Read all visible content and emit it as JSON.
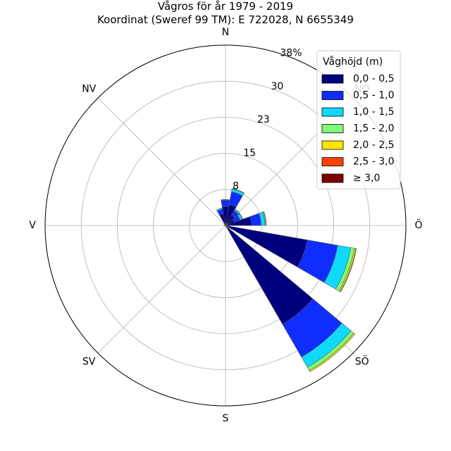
{
  "chart_data": {
    "type": "wind-rose",
    "title_line1": "Vågros för år 1979 - 2019",
    "title_line2": "Koordinat (Sweref 99 TM): E 722028, N 6655349",
    "direction_labels": [
      "N",
      "NV",
      "V",
      "SV",
      "S",
      "SÖ",
      "Ö",
      "NO"
    ],
    "direction_angles_deg": [
      0,
      315,
      270,
      225,
      180,
      135,
      90,
      45
    ],
    "radial_ticks": [
      "8",
      "15",
      "23",
      "30",
      "38%"
    ],
    "radial_tick_values": [
      7.6,
      15.2,
      22.8,
      30.4,
      38
    ],
    "rmax": 38,
    "legend": {
      "title": "Våghöjd (m)",
      "position": "top-right",
      "entries": [
        "0,0 - 0,5",
        "0,5 - 1,0",
        "1,0 - 1,5",
        "1,5 - 2,0",
        "2,0 - 2,5",
        "2,5 - 3,0",
        "≥ 3,0"
      ],
      "colors": [
        "#00007f",
        "#0f2dff",
        "#10d9ff",
        "#7dff7a",
        "#ffe500",
        "#ff4100",
        "#7f0000"
      ]
    },
    "sectors": [
      {
        "direction_deg": 0,
        "cumulative_percent": [
          4.0,
          5.3,
          5.4,
          5.45,
          5.5,
          5.5,
          5.5
        ]
      },
      {
        "direction_deg": 20,
        "cumulative_percent": [
          4.5,
          7.2,
          7.8,
          7.9,
          7.9,
          7.9,
          7.9
        ]
      },
      {
        "direction_deg": 40,
        "cumulative_percent": [
          2.5,
          3.6,
          3.9,
          4.0,
          4.0,
          4.0,
          4.0
        ]
      },
      {
        "direction_deg": 60,
        "cumulative_percent": [
          2.0,
          3.3,
          3.8,
          3.9,
          3.9,
          3.9,
          3.9
        ]
      },
      {
        "direction_deg": 80,
        "cumulative_percent": [
          5.5,
          7.5,
          8.3,
          8.5,
          8.6,
          8.6,
          8.6
        ]
      },
      {
        "direction_deg": 110,
        "cumulative_percent": [
          17.5,
          24.0,
          26.8,
          27.6,
          27.9,
          28.0,
          28.0
        ]
      },
      {
        "direction_deg": 140,
        "cumulative_percent": [
          24.0,
          32.0,
          34.5,
          35.3,
          35.6,
          35.6,
          35.6
        ]
      },
      {
        "direction_deg": 160,
        "cumulative_percent": [
          0.1,
          0.1,
          0.1,
          0.1,
          0.1,
          0.1,
          0.1
        ]
      },
      {
        "direction_deg": 180,
        "cumulative_percent": [
          0.1,
          0.1,
          0.1,
          0.1,
          0.1,
          0.1,
          0.1
        ]
      },
      {
        "direction_deg": 200,
        "cumulative_percent": [
          0.1,
          0.1,
          0.1,
          0.1,
          0.1,
          0.1,
          0.1
        ]
      },
      {
        "direction_deg": 220,
        "cumulative_percent": [
          0.1,
          0.1,
          0.1,
          0.1,
          0.1,
          0.1,
          0.1
        ]
      },
      {
        "direction_deg": 240,
        "cumulative_percent": [
          0.1,
          0.1,
          0.1,
          0.1,
          0.1,
          0.1,
          0.1
        ]
      },
      {
        "direction_deg": 260,
        "cumulative_percent": [
          0.1,
          0.1,
          0.1,
          0.1,
          0.1,
          0.1,
          0.1
        ]
      },
      {
        "direction_deg": 280,
        "cumulative_percent": [
          0.1,
          0.1,
          0.1,
          0.1,
          0.1,
          0.1,
          0.1
        ]
      },
      {
        "direction_deg": 300,
        "cumulative_percent": [
          0.2,
          0.2,
          0.2,
          0.2,
          0.2,
          0.2,
          0.2
        ]
      },
      {
        "direction_deg": 320,
        "cumulative_percent": [
          0.4,
          0.4,
          0.4,
          0.4,
          0.4,
          0.4,
          0.4
        ]
      },
      {
        "direction_deg": 340,
        "cumulative_percent": [
          2.5,
          3.5,
          3.8,
          3.8,
          3.8,
          3.8,
          3.8
        ]
      }
    ],
    "sector_width_deg": 20,
    "grid": true
  }
}
